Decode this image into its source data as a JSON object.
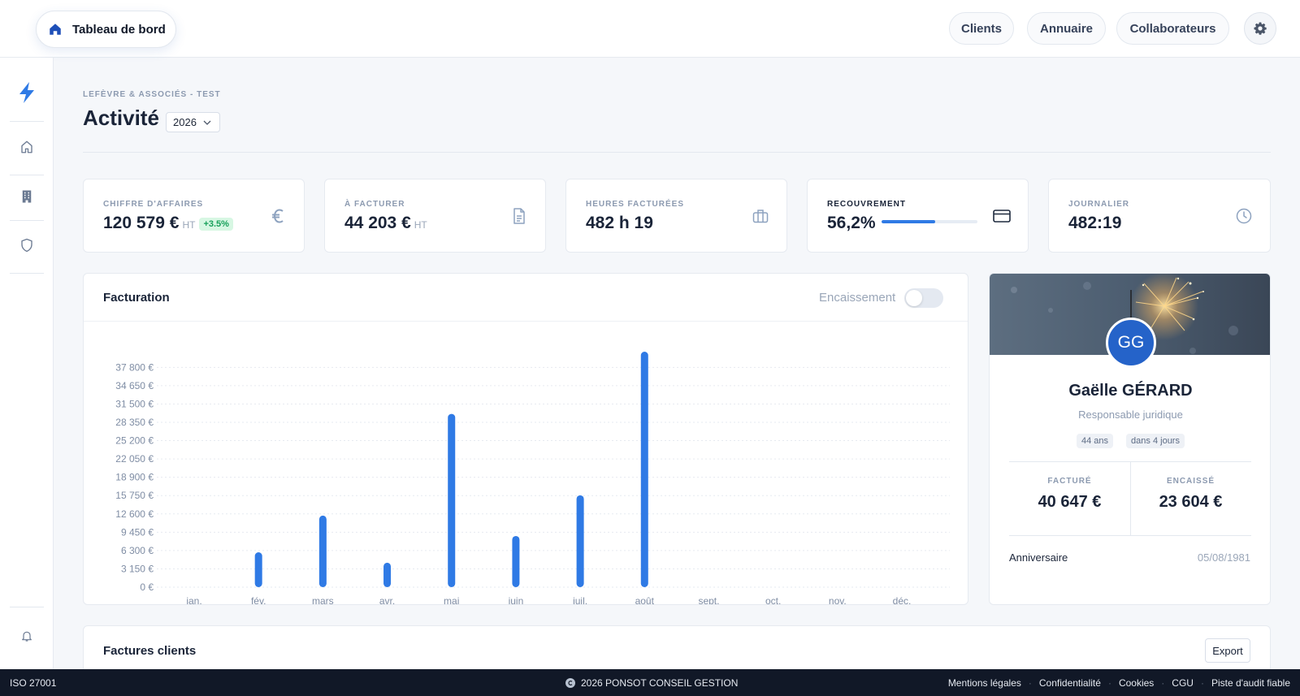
{
  "topbar": {
    "home_label": "Tableau de bord",
    "nav": [
      "Clients",
      "Annuaire",
      "Collaborateurs"
    ],
    "accent": "#2f7ae5"
  },
  "sidebar": {
    "icons": [
      "bolt-icon",
      "home-icon",
      "building-icon",
      "shield-icon",
      "bell-icon"
    ]
  },
  "header": {
    "breadcrumb": "LEFÈVRE & ASSOCIÉS - TEST",
    "title": "Activité",
    "year": "2026"
  },
  "stats": [
    {
      "label": "CHIFFRE D'AFFAIRES",
      "value": "120 579 €",
      "suffix": "HT",
      "badge": "+3.5%",
      "icon": "euro-icon"
    },
    {
      "label": "À FACTURER",
      "value": "44 203 €",
      "suffix": "HT",
      "icon": "document-icon"
    },
    {
      "label": "HEURES FACTURÉES",
      "value": "482 h 19",
      "icon": "briefcase-icon"
    },
    {
      "label": "RECOUVREMENT",
      "value": "56,2%",
      "progress": 0.562,
      "icon": "credit-card-icon"
    },
    {
      "label": "JOURNALIER",
      "value": "482:19",
      "icon": "clock-icon"
    }
  ],
  "facturation": {
    "title": "Facturation",
    "toggle_label": "Encaissement",
    "toggle_on": false
  },
  "chart_data": {
    "type": "bar",
    "categories": [
      "jan.",
      "fév.",
      "mars",
      "avr.",
      "mai",
      "juin",
      "juil.",
      "août",
      "sept.",
      "oct.",
      "nov.",
      "déc."
    ],
    "values": [
      0,
      6000,
      12300,
      4200,
      29800,
      8800,
      15800,
      40500,
      0,
      0,
      0,
      0
    ],
    "yticks": [
      0,
      3150,
      6300,
      9450,
      12600,
      15750,
      18900,
      22050,
      25200,
      28350,
      31500,
      34650,
      37800
    ],
    "ytick_labels": [
      "0 €",
      "3 150 €",
      "6 300 €",
      "9 450 €",
      "12 600 €",
      "15 750 €",
      "18 900 €",
      "22 050 €",
      "25 200 €",
      "28 350 €",
      "31 500 €",
      "34 650 €",
      "37 800 €"
    ],
    "ylim": [
      0,
      40500
    ],
    "grid": true,
    "color": "#2f7ae5"
  },
  "profile": {
    "initials": "GG",
    "name": "Gaëlle GÉRARD",
    "role": "Responsable juridique",
    "tags": [
      "44 ans",
      "dans 4 jours"
    ],
    "facture_label": "FACTURÉ",
    "facture_value": "40 647 €",
    "encaisse_label": "ENCAISSÉ",
    "encaisse_value": "23 604 €",
    "anniv_label": "Anniversaire",
    "anniv_value": "05/08/1981",
    "avatar_color": "#2563c9"
  },
  "factures_clients": {
    "title": "Factures clients",
    "export_label": "Export"
  },
  "footer": {
    "iso": "ISO 27001",
    "copyright": "2026 PONSOT CONSEIL GESTION",
    "links": [
      "Mentions légales",
      "Confidentialité",
      "Cookies",
      "CGU",
      "Piste d'audit fiable"
    ]
  }
}
